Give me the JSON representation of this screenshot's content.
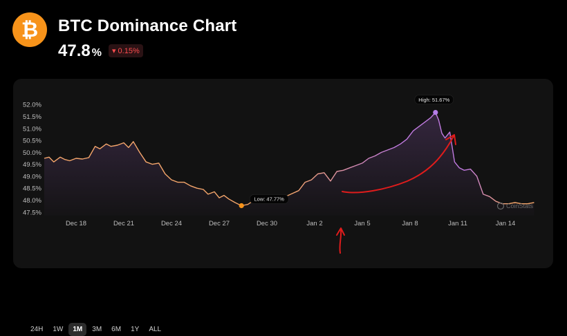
{
  "header": {
    "title": "BTC Dominance Chart",
    "value": "47.8",
    "value_unit": "%",
    "change": "▾ 0.15%",
    "logo_glyph": "₿"
  },
  "colors": {
    "line_low": "#f5a66b",
    "line_high": "#c07ae0",
    "low_marker": "#f7931a",
    "high_marker": "#b57de8",
    "annotation": "#e01c1c"
  },
  "ranges": [
    {
      "label": "24H",
      "active": false
    },
    {
      "label": "1W",
      "active": false
    },
    {
      "label": "1M",
      "active": true
    },
    {
      "label": "3M",
      "active": false
    },
    {
      "label": "6M",
      "active": false
    },
    {
      "label": "1Y",
      "active": false
    },
    {
      "label": "ALL",
      "active": false
    }
  ],
  "watermark": "CoinStats",
  "chart_data": {
    "type": "area",
    "title": "BTC Dominance Chart",
    "xlabel": "",
    "ylabel": "",
    "y_ticks": [
      "52.0%",
      "51.5%",
      "51.0%",
      "50.5%",
      "50.0%",
      "49.5%",
      "49.0%",
      "48.5%",
      "48.0%",
      "47.5%"
    ],
    "ylim": [
      47.35,
      52.15
    ],
    "x_ticks": [
      {
        "label": "Dec 18",
        "day": 2
      },
      {
        "label": "Dec 21",
        "day": 5
      },
      {
        "label": "Dec 24",
        "day": 8
      },
      {
        "label": "Dec 27",
        "day": 11
      },
      {
        "label": "Dec 30",
        "day": 14
      },
      {
        "label": "Jan 2",
        "day": 17
      },
      {
        "label": "Jan 5",
        "day": 20
      },
      {
        "label": "Jan 8",
        "day": 23
      },
      {
        "label": "Jan 11",
        "day": 26
      },
      {
        "label": "Jan 14",
        "day": 29
      }
    ],
    "series": [
      {
        "x": [
          0,
          0.3,
          0.6,
          1.0,
          1.3,
          1.6,
          2.0,
          2.4,
          2.8,
          3.2,
          3.5,
          3.9,
          4.2,
          4.6,
          5.0,
          5.3,
          5.6,
          6.0,
          6.4,
          6.8,
          7.2,
          7.6,
          8.0,
          8.4,
          8.8,
          9.2,
          9.6,
          10.0,
          10.3,
          10.7,
          11.0,
          11.3,
          11.6,
          12.0,
          12.4,
          12.8,
          13.2,
          13.6,
          14.0,
          14.5,
          15.0,
          15.5,
          16.0,
          16.4,
          16.8,
          17.2,
          17.6,
          18.0,
          18.4,
          18.8,
          19.2,
          19.6,
          20.0,
          20.4,
          20.8,
          21.2,
          21.6,
          22.0,
          22.4,
          22.8,
          23.2,
          23.6,
          24.0,
          24.3,
          24.6,
          24.8,
          25.0,
          25.2,
          25.5,
          25.8,
          26.1,
          26.4,
          26.8,
          27.2,
          27.6,
          28.0,
          28.4,
          28.8,
          29.2,
          29.6,
          30.0,
          30.4,
          30.8
        ],
        "y": [
          49.75,
          49.8,
          49.6,
          49.8,
          49.7,
          49.65,
          49.75,
          49.72,
          49.78,
          50.25,
          50.15,
          50.35,
          50.25,
          50.3,
          50.4,
          50.2,
          50.45,
          50.0,
          49.6,
          49.5,
          49.55,
          49.1,
          48.85,
          48.75,
          48.75,
          48.6,
          48.5,
          48.45,
          48.25,
          48.35,
          48.1,
          48.2,
          48.05,
          47.9,
          47.77,
          47.82,
          48.0,
          48.15,
          48.12,
          48.1,
          48.1,
          48.25,
          48.4,
          48.75,
          48.85,
          49.1,
          49.15,
          48.8,
          49.2,
          49.25,
          49.35,
          49.45,
          49.55,
          49.75,
          49.85,
          50.0,
          50.1,
          50.2,
          50.35,
          50.55,
          50.9,
          51.1,
          51.3,
          51.45,
          51.67,
          51.35,
          50.8,
          50.6,
          50.85,
          49.6,
          49.35,
          49.25,
          49.3,
          49.0,
          48.25,
          48.15,
          47.95,
          47.85,
          47.85,
          47.9,
          47.85,
          47.85,
          47.9
        ]
      }
    ],
    "annotations": [
      {
        "label": "Low: 47.77%",
        "x": 12.4,
        "y": 47.77
      },
      {
        "label": "High: 51.67%",
        "x": 24.6,
        "y": 51.67
      }
    ],
    "grid": false,
    "legend": "none"
  }
}
